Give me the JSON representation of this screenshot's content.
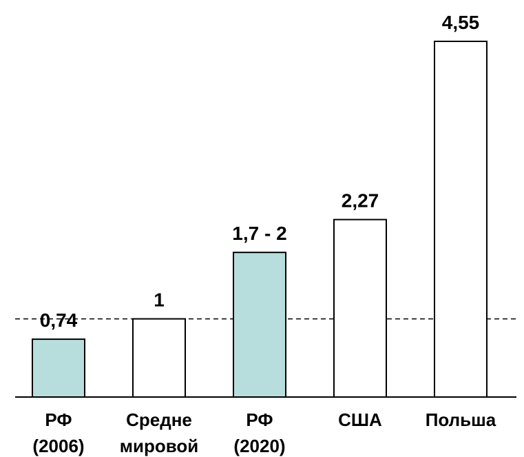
{
  "chart_data": {
    "type": "bar",
    "title": "",
    "xlabel": "",
    "ylabel": "",
    "categories": [
      {
        "line1": "РФ",
        "line2": "(2006)"
      },
      {
        "line1": "Средне",
        "line2": "мировой"
      },
      {
        "line1": "РФ",
        "line2": "(2020)"
      },
      {
        "line1": "США",
        "line2": ""
      },
      {
        "line1": "Польша",
        "line2": ""
      }
    ],
    "values": [
      0.74,
      1,
      1.85,
      2.27,
      4.55
    ],
    "value_labels": [
      "0,74",
      "1",
      "1,7 - 2",
      "2,27",
      "4,55"
    ],
    "ylim": [
      0,
      4.55
    ],
    "reference_line": {
      "value": 1,
      "style": "dashed"
    },
    "grid": false,
    "colors": {
      "highlight_fill": "#b7dedd",
      "default_fill": "#ffffff",
      "stroke": "#000000"
    },
    "highlighted": [
      true,
      false,
      true,
      false,
      false
    ]
  }
}
